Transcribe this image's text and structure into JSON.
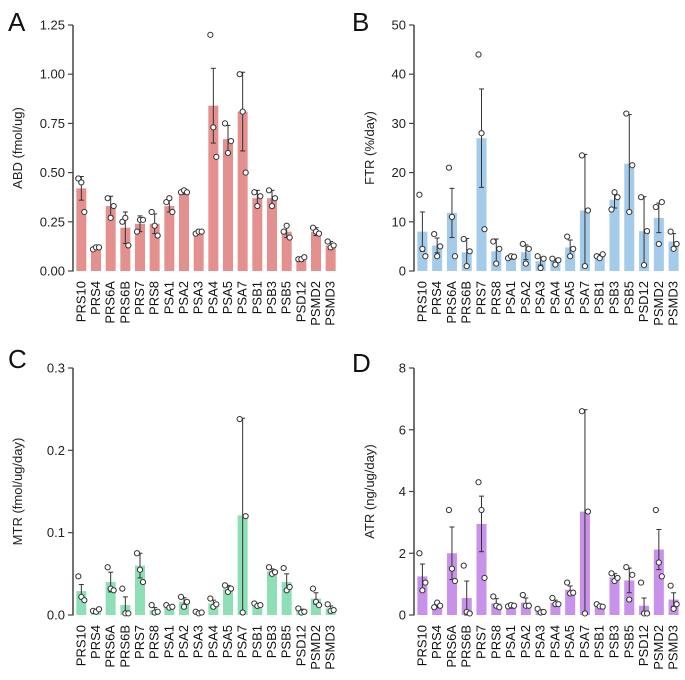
{
  "chart_data": [
    {
      "type": "bar",
      "panel": "A",
      "ylabel": "ABD (fmol/ug)",
      "ylim": [
        0,
        1.25
      ],
      "yticks": [
        "0.00",
        "0.25",
        "0.50",
        "0.75",
        "1.00",
        "1.25"
      ],
      "tick_values": [
        0,
        0.25,
        0.5,
        0.75,
        1.0,
        1.25
      ],
      "color": "#e3908f",
      "categories": [
        "PRS10",
        "PRS4",
        "PRS6A",
        "PRS6B",
        "PRS7",
        "PRS8",
        "PSA1",
        "PSA2",
        "PSA3",
        "PSA4",
        "PSA5",
        "PSA7",
        "PSB1",
        "PSB3",
        "PSB5",
        "PSD12",
        "PSMD2",
        "PSMD3"
      ],
      "values": [
        0.42,
        0.12,
        0.33,
        0.22,
        0.24,
        0.24,
        0.33,
        0.4,
        0.2,
        0.84,
        0.67,
        0.81,
        0.37,
        0.37,
        0.2,
        0.06,
        0.2,
        0.13
      ],
      "errors": [
        0.06,
        0.01,
        0.05,
        0.08,
        0.04,
        0.05,
        0.03,
        0.01,
        0.01,
        0.19,
        0.07,
        0.2,
        0.04,
        0.04,
        0.03,
        0.01,
        0.02,
        0.02
      ],
      "points": [
        [
          0.47,
          0.45,
          0.3
        ],
        [
          0.11,
          0.12,
          0.12
        ],
        [
          0.37,
          0.27,
          0.33
        ],
        [
          0.25,
          0.27,
          0.13
        ],
        [
          0.2,
          0.26,
          0.26
        ],
        [
          0.3,
          0.23,
          0.18
        ],
        [
          0.35,
          0.37,
          0.3
        ],
        [
          0.4,
          0.41,
          0.4
        ],
        [
          0.19,
          0.2,
          0.2
        ],
        [
          1.2,
          0.73,
          0.58
        ],
        [
          0.75,
          0.6,
          0.66
        ],
        [
          1.0,
          0.81,
          0.5
        ],
        [
          0.4,
          0.33,
          0.38
        ],
        [
          0.41,
          0.33,
          0.37
        ],
        [
          0.2,
          0.23,
          0.17
        ],
        [
          0.06,
          0.06,
          0.07
        ],
        [
          0.22,
          0.2,
          0.19
        ],
        [
          0.15,
          0.12,
          0.13
        ]
      ]
    },
    {
      "type": "bar",
      "panel": "B",
      "ylabel": "FTR (%/day)",
      "ylim": [
        0,
        50
      ],
      "yticks": [
        "0",
        "10",
        "20",
        "30",
        "40",
        "50"
      ],
      "tick_values": [
        0,
        10,
        20,
        30,
        40,
        50
      ],
      "color": "#a4ccea",
      "categories": [
        "PRS10",
        "PRS4",
        "PRS6A",
        "PRS6B",
        "PRS7",
        "PRS8",
        "PSA1",
        "PSA2",
        "PSA3",
        "PSA4",
        "PSA5",
        "PSA7",
        "PSB1",
        "PSB3",
        "PSB5",
        "PSD12",
        "PSMD2",
        "PSMD3"
      ],
      "values": [
        8.0,
        5.2,
        11.8,
        3.8,
        27.0,
        4.0,
        2.8,
        3.8,
        2.0,
        2.0,
        4.8,
        12.3,
        3.0,
        14.5,
        21.8,
        8.1,
        10.8,
        6.0
      ],
      "errors": [
        4.0,
        1.5,
        5.0,
        2.8,
        10.0,
        2.5,
        0.4,
        1.5,
        0.8,
        0.5,
        1.5,
        11.4,
        0.4,
        1.7,
        10.0,
        7.0,
        3.0,
        1.6
      ],
      "points": [
        [
          15.5,
          4.5,
          3.0
        ],
        [
          7.5,
          3.0,
          5.0
        ],
        [
          21.0,
          11.0,
          3.0
        ],
        [
          6.5,
          1.0,
          4.0
        ],
        [
          44.0,
          28.0,
          8.5
        ],
        [
          6.0,
          1.5,
          4.5
        ],
        [
          2.6,
          3.0,
          2.9
        ],
        [
          5.5,
          1.5,
          4.5
        ],
        [
          3.0,
          0.6,
          2.5
        ],
        [
          2.5,
          1.3,
          2.2
        ],
        [
          7.0,
          3.0,
          4.5
        ],
        [
          23.5,
          1.0,
          12.3
        ],
        [
          3.0,
          2.6,
          3.4
        ],
        [
          12.5,
          16.0,
          15.0
        ],
        [
          32.0,
          12.0,
          21.5
        ],
        [
          15.0,
          1.2,
          8.1
        ],
        [
          13.0,
          5.5,
          14.0
        ],
        [
          8.0,
          4.5,
          5.5
        ]
      ]
    },
    {
      "type": "bar",
      "panel": "C",
      "ylabel": "MTR (fmol/ug/day)",
      "ylim": [
        0,
        0.3
      ],
      "yticks": [
        "0.0",
        "0.1",
        "0.2",
        "0.3"
      ],
      "tick_values": [
        0,
        0.1,
        0.2,
        0.3
      ],
      "color": "#8ddfb5",
      "categories": [
        "PRS10",
        "PRS4",
        "PRS6A",
        "PRS6B",
        "PRS7",
        "PRS8",
        "PSA1",
        "PSA2",
        "PSA3",
        "PSA4",
        "PSA5",
        "PSA7",
        "PSB1",
        "PSB3",
        "PSB5",
        "PSD12",
        "PSMD2",
        "PSMD3"
      ],
      "values": [
        0.029,
        0.005,
        0.04,
        0.012,
        0.06,
        0.006,
        0.01,
        0.016,
        0.003,
        0.014,
        0.032,
        0.121,
        0.012,
        0.053,
        0.04,
        0.005,
        0.02,
        0.008
      ],
      "errors": [
        0.008,
        0.002,
        0.012,
        0.01,
        0.015,
        0.003,
        0.002,
        0.005,
        0.002,
        0.004,
        0.004,
        0.118,
        0.002,
        0.003,
        0.01,
        0.002,
        0.007,
        0.003
      ],
      "points": [
        [
          0.047,
          0.022,
          0.018
        ],
        [
          0.005,
          0.004,
          0.007
        ],
        [
          0.058,
          0.032,
          0.03
        ],
        [
          0.032,
          0.002,
          0.002
        ],
        [
          0.075,
          0.055,
          0.04
        ],
        [
          0.012,
          0.003,
          0.004
        ],
        [
          0.012,
          0.009,
          0.01
        ],
        [
          0.022,
          0.01,
          0.016
        ],
        [
          0.004,
          0.002,
          0.003
        ],
        [
          0.02,
          0.01,
          0.013
        ],
        [
          0.036,
          0.028,
          0.032
        ],
        [
          0.238,
          0.003,
          0.12
        ],
        [
          0.014,
          0.011,
          0.012
        ],
        [
          0.058,
          0.05,
          0.052
        ],
        [
          0.057,
          0.03,
          0.034
        ],
        [
          0.008,
          0.003,
          0.004
        ],
        [
          0.032,
          0.016,
          0.012
        ],
        [
          0.013,
          0.005,
          0.006
        ]
      ]
    },
    {
      "type": "bar",
      "panel": "D",
      "ylabel": "ATR (ng/ug/day)",
      "ylim": [
        0,
        8
      ],
      "yticks": [
        "0",
        "2",
        "4",
        "6",
        "8"
      ],
      "tick_values": [
        0,
        2,
        4,
        6,
        8
      ],
      "color": "#c992ea",
      "categories": [
        "PRS10",
        "PRS4",
        "PRS6A",
        "PRS6B",
        "PRS7",
        "PRS8",
        "PSA1",
        "PSA2",
        "PSA3",
        "PSA4",
        "PSA5",
        "PSA7",
        "PSB1",
        "PSB3",
        "PSB5",
        "PSD12",
        "PSMD2",
        "PSMD3"
      ],
      "values": [
        1.25,
        0.32,
        2.0,
        0.55,
        2.95,
        0.38,
        0.3,
        0.4,
        0.12,
        0.4,
        0.82,
        3.35,
        0.3,
        1.22,
        1.12,
        0.3,
        2.12,
        0.5
      ],
      "errors": [
        0.4,
        0.08,
        0.85,
        0.55,
        0.9,
        0.15,
        0.08,
        0.15,
        0.05,
        0.08,
        0.12,
        3.3,
        0.05,
        0.12,
        0.4,
        0.25,
        0.65,
        0.22
      ],
      "points": [
        [
          2.0,
          0.8,
          1.05
        ],
        [
          0.25,
          0.4,
          0.3
        ],
        [
          3.4,
          1.5,
          1.1
        ],
        [
          1.6,
          0.1,
          0.05
        ],
        [
          4.3,
          3.4,
          1.2
        ],
        [
          0.6,
          0.3,
          0.25
        ],
        [
          0.28,
          0.32,
          0.3
        ],
        [
          0.65,
          0.3,
          0.3
        ],
        [
          0.2,
          0.08,
          0.1
        ],
        [
          0.55,
          0.35,
          0.35
        ],
        [
          1.05,
          0.7,
          0.72
        ],
        [
          6.6,
          0.05,
          3.35
        ],
        [
          0.35,
          0.28,
          0.27
        ],
        [
          1.35,
          1.1,
          1.2
        ],
        [
          1.55,
          0.5,
          1.3
        ],
        [
          1.05,
          0.05,
          0.05
        ],
        [
          3.4,
          1.7,
          1.25
        ],
        [
          0.95,
          0.2,
          0.35
        ]
      ]
    }
  ]
}
